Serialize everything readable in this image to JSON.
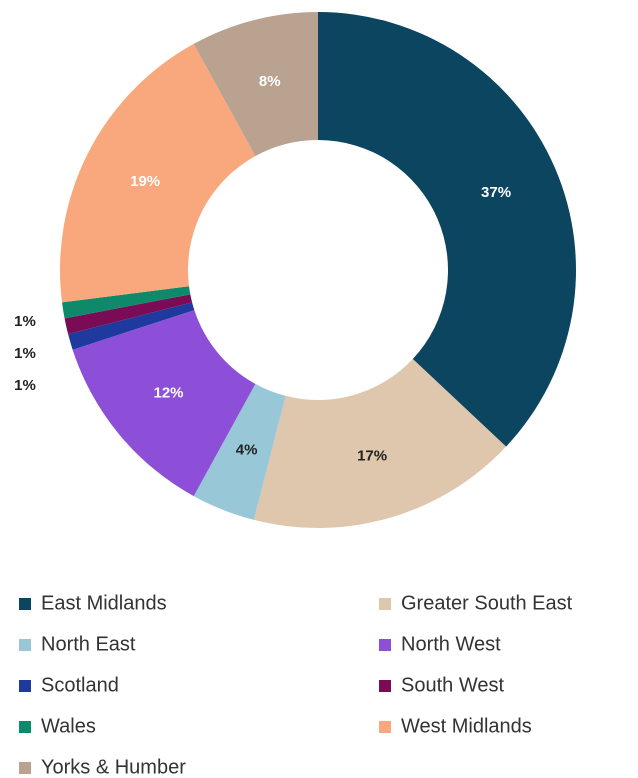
{
  "chart_data": {
    "type": "donut",
    "categories": [
      "East Midlands",
      "Greater South East",
      "North East",
      "North West",
      "Scotland",
      "South West",
      "Wales",
      "West Midlands",
      "Yorks & Humber"
    ],
    "values": [
      37,
      17,
      4,
      12,
      1,
      1,
      1,
      19,
      8
    ],
    "value_labels": [
      "37%",
      "17%",
      "4%",
      "12%",
      "1%",
      "1%",
      "1%",
      "19%",
      "8%"
    ],
    "colors": [
      "#0b4560",
      "#dfc7ad",
      "#98c8d8",
      "#8e4fd8",
      "#1f3a9e",
      "#7a0b55",
      "#0e8a6a",
      "#f8a87c",
      "#b9a290"
    ],
    "legend": "bottom"
  }
}
